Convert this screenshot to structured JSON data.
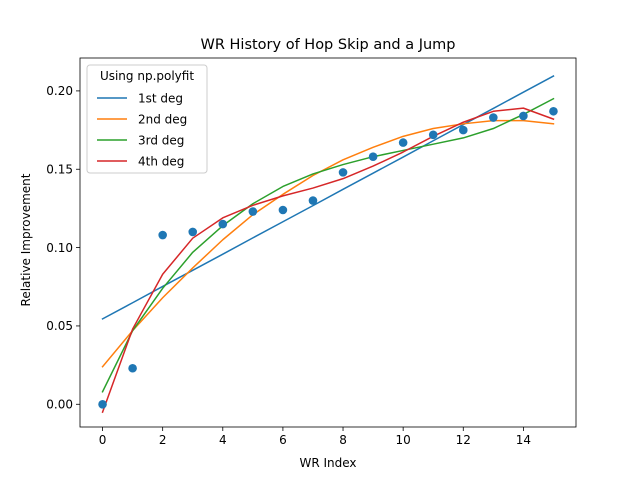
{
  "chart_data": {
    "type": "line",
    "title": "WR History of Hop Skip and a Jump",
    "xlabel": "WR Index",
    "ylabel": "Relative Improvement",
    "xlim": [
      -0.75,
      15.75
    ],
    "ylim": [
      -0.0145,
      0.221
    ],
    "xticks": [
      0,
      2,
      4,
      6,
      8,
      10,
      12,
      14
    ],
    "yticks": [
      0.0,
      0.05,
      0.1,
      0.15,
      0.2
    ],
    "ytick_labels": [
      "0.00",
      "0.05",
      "0.10",
      "0.15",
      "0.20"
    ],
    "grid": false,
    "legend": {
      "title": "Using np.polyfit",
      "placement": "top-left"
    },
    "x": [
      0,
      1,
      2,
      3,
      4,
      5,
      6,
      7,
      8,
      9,
      10,
      11,
      12,
      13,
      14,
      15
    ],
    "points": {
      "color": "#1f77b4",
      "values": [
        0.0,
        0.023,
        0.108,
        0.11,
        0.115,
        0.123,
        0.124,
        0.13,
        0.148,
        0.158,
        0.167,
        0.172,
        0.175,
        0.183,
        0.184,
        0.187
      ]
    },
    "series": [
      {
        "name": "1st deg",
        "color": "#1f77b4",
        "values": [
          0.0545,
          0.0648,
          0.0752,
          0.0855,
          0.0958,
          0.1062,
          0.1165,
          0.1268,
          0.1372,
          0.1475,
          0.1578,
          0.1682,
          0.1785,
          0.1888,
          0.1992,
          0.2095
        ]
      },
      {
        "name": "2nd deg",
        "color": "#ff7f0e",
        "values": [
          0.024,
          0.047,
          0.068,
          0.087,
          0.105,
          0.121,
          0.134,
          0.146,
          0.156,
          0.164,
          0.171,
          0.176,
          0.179,
          0.181,
          0.181,
          0.179
        ]
      },
      {
        "name": "3rd deg",
        "color": "#2ca02c",
        "values": [
          0.008,
          0.047,
          0.074,
          0.097,
          0.114,
          0.128,
          0.139,
          0.147,
          0.153,
          0.158,
          0.162,
          0.166,
          0.17,
          0.176,
          0.185,
          0.195
        ]
      },
      {
        "name": "4th deg",
        "color": "#d62728",
        "values": [
          -0.005,
          0.048,
          0.083,
          0.106,
          0.119,
          0.127,
          0.133,
          0.138,
          0.144,
          0.152,
          0.161,
          0.171,
          0.18,
          0.187,
          0.189,
          0.182
        ]
      }
    ]
  }
}
